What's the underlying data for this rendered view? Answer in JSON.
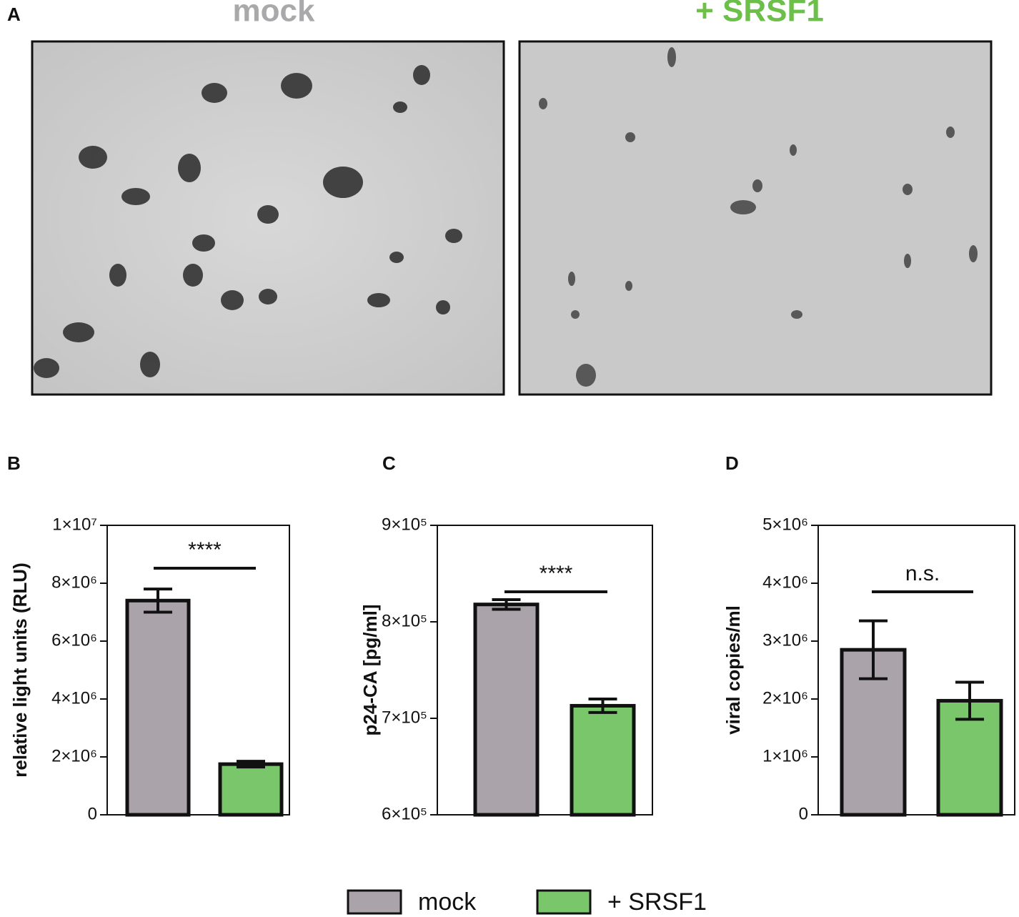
{
  "panel_labels": [
    "A",
    "B",
    "C",
    "D"
  ],
  "image_titles": [
    {
      "text": "mock",
      "color": "#a9a9ab"
    },
    {
      "text": "+ SRSF1",
      "color": "#6cc04a"
    }
  ],
  "legend": {
    "items": [
      {
        "name": "mock",
        "color": "#aaa3a9"
      },
      {
        "name": "+ SRSF1",
        "color": "#7ac66a"
      }
    ]
  },
  "chart_data": [
    {
      "type": "bar",
      "y_label": "relative light units (RLU)",
      "significance": "****",
      "values": [
        7400000,
        1750000
      ],
      "errors": [
        400000,
        100000
      ],
      "ylim": [
        0,
        10000000
      ],
      "yticks": [
        0,
        {
          "value": 2000000,
          "label": "2×10⁶"
        },
        {
          "value": 4000000,
          "label": "4×10⁶"
        },
        {
          "value": 6000000,
          "label": "6×10⁶"
        },
        {
          "value": 8000000,
          "label": "8×10⁶"
        },
        {
          "value": 10000000,
          "label": "1×10⁷"
        }
      ]
    },
    {
      "type": "bar",
      "y_label": "p24-CA [pg/ml]",
      "significance": "****",
      "values": [
        818000,
        713000
      ],
      "errors": [
        5000,
        7000
      ],
      "ylim": [
        600000,
        900000
      ],
      "yticks": [
        {
          "value": 600000,
          "label": "6×10⁵"
        },
        {
          "value": 700000,
          "label": "7×10⁵"
        },
        {
          "value": 800000,
          "label": "8×10⁵"
        },
        {
          "value": 900000,
          "label": "9×10⁵"
        }
      ]
    },
    {
      "type": "bar",
      "y_label": "viral copies/ml",
      "significance": "n.s.",
      "values": [
        2850000,
        1970000
      ],
      "errors": [
        500000,
        320000
      ],
      "ylim": [
        0,
        5000000
      ],
      "yticks": [
        0,
        {
          "value": 1000000,
          "label": "1×10⁶"
        },
        {
          "value": 2000000,
          "label": "2×10⁶"
        },
        {
          "value": 3000000,
          "label": "3×10⁶"
        },
        {
          "value": 4000000,
          "label": "4×10⁶"
        },
        {
          "value": 5000000,
          "label": "5×10⁶"
        }
      ]
    }
  ]
}
